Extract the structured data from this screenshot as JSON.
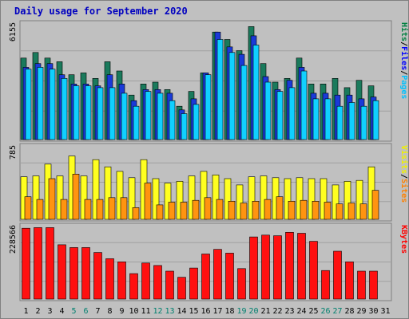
{
  "chart_data": {
    "title": "Daily usage for September 2020",
    "type": "bar",
    "categories": [
      "1",
      "2",
      "3",
      "4",
      "5",
      "6",
      "7",
      "8",
      "9",
      "10",
      "11",
      "12",
      "13",
      "14",
      "15",
      "16",
      "17",
      "18",
      "19",
      "20",
      "21",
      "22",
      "23",
      "24",
      "25",
      "26",
      "27",
      "28",
      "29",
      "30",
      "31"
    ],
    "weekend_days": [
      "5",
      "6",
      "12",
      "13",
      "19",
      "20",
      "26",
      "27"
    ],
    "panels": [
      {
        "name": "hits-files-pages",
        "ymax_label": "6155",
        "ymax": 6155,
        "ylim": [
          0,
          6155
        ],
        "legend": [
          {
            "text": "Hits",
            "color": "#008040"
          },
          {
            "text": "/",
            "color": "#000000"
          },
          {
            "text": "Files",
            "color": "#0000ff"
          },
          {
            "text": "/",
            "color": "#000000"
          },
          {
            "text": "Pages",
            "color": "#00c0ff"
          }
        ],
        "series": [
          {
            "name": "Hits",
            "color": "#1a7a5c",
            "values": [
              4400,
              4700,
              4400,
              4200,
              3500,
              3600,
              3300,
              4200,
              3700,
              2400,
              3000,
              3100,
              2700,
              1800,
              2600,
              3600,
              5800,
              5400,
              4800,
              6100,
              4100,
              3100,
              3300,
              4400,
              3000,
              3000,
              3300,
              2800,
              3200,
              2900
            ]
          },
          {
            "name": "Files",
            "color": "#1a3ad8",
            "values": [
              3900,
              4100,
              4100,
              3500,
              3000,
              3000,
              2900,
              3500,
              3000,
              2100,
              2700,
              2700,
              2500,
              1600,
              2200,
              3600,
              5800,
              5000,
              4600,
              5600,
              3400,
              2700,
              3200,
              3900,
              2500,
              2500,
              2400,
              2400,
              2200,
              2300
            ]
          },
          {
            "name": "Pages",
            "color": "#10d0ff",
            "values": [
              3800,
              3900,
              3800,
              3300,
              2900,
              2900,
              2800,
              2800,
              2500,
              1800,
              2600,
              2500,
              2100,
              1400,
              1900,
              3500,
              5400,
              4700,
              4000,
              5100,
              3100,
              2600,
              2800,
              3700,
              2200,
              2200,
              1800,
              2000,
              1800,
              2100
            ]
          }
        ]
      },
      {
        "name": "visits-sites",
        "ymax_label": "785",
        "ymax": 785,
        "ylim": [
          0,
          785
        ],
        "legend": [
          {
            "text": "Visits",
            "color": "#f0f000"
          },
          {
            "text": "/",
            "color": "#000000"
          },
          {
            "text": "Sites",
            "color": "#ff8000"
          }
        ],
        "series": [
          {
            "name": "Visits",
            "color": "#ffff20",
            "values": [
              470,
              480,
              610,
              480,
              700,
              480,
              660,
              580,
              530,
              460,
              660,
              450,
              400,
              420,
              480,
              530,
              490,
              450,
              380,
              470,
              480,
              460,
              450,
              460,
              450,
              450,
              380,
              420,
              430,
              580
            ]
          },
          {
            "name": "Sites",
            "color": "#ff9410",
            "values": [
              250,
              220,
              450,
              220,
              500,
              220,
              220,
              240,
              240,
              130,
              400,
              160,
              190,
              190,
              210,
              240,
              220,
              200,
              180,
              200,
              220,
              250,
              200,
              210,
              200,
              190,
              170,
              180,
              170,
              320
            ]
          }
        ]
      },
      {
        "name": "kbytes",
        "ymax_label": "228566",
        "ymax": 228566,
        "ylim": [
          0,
          228566
        ],
        "legend": [
          {
            "text": "KBytes",
            "color": "#ff0000"
          }
        ],
        "series": [
          {
            "name": "KBytes",
            "color": "#ff1010",
            "values": [
              228000,
              230000,
              230000,
              175000,
              166000,
              166000,
              150000,
              130000,
              120000,
              82000,
              116000,
              108000,
              90000,
              70000,
              100000,
              145000,
              160000,
              148000,
              98000,
              200000,
              206000,
              204000,
              215000,
              212000,
              186000,
              92000,
              154000,
              120000,
              90000,
              90000
            ]
          }
        ]
      }
    ]
  }
}
